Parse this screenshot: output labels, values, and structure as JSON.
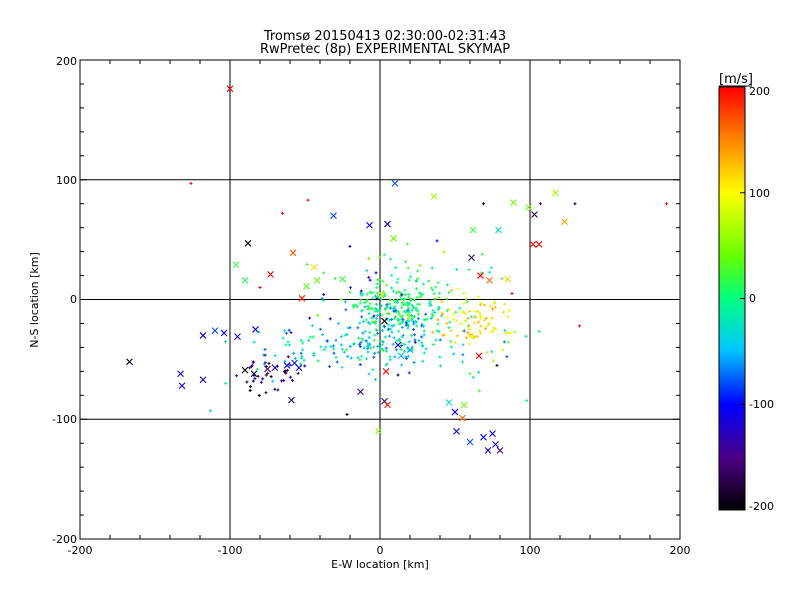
{
  "chart_data": {
    "type": "scatter",
    "title": "Tromsø 20150413 02:30:00-02:31:43",
    "subtitle": "RwPretec (8p) EXPERIMENTAL SKYMAP",
    "xlabel": "E-W location [km]",
    "ylabel": "N-S location [km]",
    "xlim": [
      -200,
      200
    ],
    "ylim": [
      -200,
      200
    ],
    "x_ticks": [
      "-200",
      "-100",
      "0",
      "100",
      "200"
    ],
    "y_ticks": [
      "-200",
      "-100",
      "0",
      "100",
      "200"
    ],
    "grid": true,
    "colorbar": {
      "label": "[m/s]",
      "range": [
        -200,
        200
      ],
      "ticks": [
        "-200",
        "-100",
        "0",
        "100",
        "200"
      ],
      "colormap": "rainbow",
      "colors": [
        "#000000",
        "#4b0082",
        "#0000ff",
        "#00c8ff",
        "#00ff80",
        "#66ff00",
        "#ffff00",
        "#ff8000",
        "#ff0000"
      ]
    },
    "markers": [
      {
        "x": -100,
        "y": 176,
        "v": 200,
        "m": "x"
      },
      {
        "x": -126,
        "y": 97,
        "v": 200,
        "m": "+"
      },
      {
        "x": -167,
        "y": -52,
        "v": -190,
        "m": "x"
      },
      {
        "x": -132,
        "y": -72,
        "v": -110,
        "m": "x"
      },
      {
        "x": -133,
        "y": -62,
        "v": -120,
        "m": "x"
      },
      {
        "x": -118,
        "y": -67,
        "v": -130,
        "m": "x"
      },
      {
        "x": -118,
        "y": -30,
        "v": -110,
        "m": "x"
      },
      {
        "x": -110,
        "y": -26,
        "v": -80,
        "m": "x"
      },
      {
        "x": -104,
        "y": -28,
        "v": -100,
        "m": "x"
      },
      {
        "x": -95,
        "y": -31,
        "v": -120,
        "m": "x"
      },
      {
        "x": -83,
        "y": -25,
        "v": -100,
        "m": "x"
      },
      {
        "x": -90,
        "y": -59,
        "v": -200,
        "m": "x"
      },
      {
        "x": -84,
        "y": -62,
        "v": -190,
        "m": "x"
      },
      {
        "x": -75,
        "y": -58,
        "v": -150,
        "m": "x"
      },
      {
        "x": -70,
        "y": -57,
        "v": -120,
        "m": "x"
      },
      {
        "x": -62,
        "y": -55,
        "v": -100,
        "m": "x"
      },
      {
        "x": -57,
        "y": -53,
        "v": -90,
        "m": "x"
      },
      {
        "x": -54,
        "y": -57,
        "v": -110,
        "m": "x"
      },
      {
        "x": -59,
        "y": -84,
        "v": -130,
        "m": "x"
      },
      {
        "x": -96,
        "y": 29,
        "v": 20,
        "m": "x"
      },
      {
        "x": -90,
        "y": 16,
        "v": 10,
        "m": "x"
      },
      {
        "x": -88,
        "y": 47,
        "v": -200,
        "m": "x"
      },
      {
        "x": -73,
        "y": 21,
        "v": 200,
        "m": "x"
      },
      {
        "x": -58,
        "y": 39,
        "v": 170,
        "m": "x"
      },
      {
        "x": -49,
        "y": 11,
        "v": 30,
        "m": "x"
      },
      {
        "x": -42,
        "y": 16,
        "v": 40,
        "m": "x"
      },
      {
        "x": -44,
        "y": 27,
        "v": 110,
        "m": "x"
      },
      {
        "x": -52,
        "y": 1,
        "v": 190,
        "m": "x"
      },
      {
        "x": -31,
        "y": 70,
        "v": -80,
        "m": "x"
      },
      {
        "x": -25,
        "y": 17,
        "v": 20,
        "m": "x"
      },
      {
        "x": -7,
        "y": 62,
        "v": -100,
        "m": "x"
      },
      {
        "x": 5,
        "y": 63,
        "v": -120,
        "m": "x"
      },
      {
        "x": 9,
        "y": 51,
        "v": 40,
        "m": "x"
      },
      {
        "x": 10,
        "y": 97,
        "v": -80,
        "m": "x"
      },
      {
        "x": 36,
        "y": 86,
        "v": 60,
        "m": "x"
      },
      {
        "x": 62,
        "y": 58,
        "v": 20,
        "m": "x"
      },
      {
        "x": 79,
        "y": 58,
        "v": -30,
        "m": "x"
      },
      {
        "x": 89,
        "y": 81,
        "v": 40,
        "m": "x"
      },
      {
        "x": 99,
        "y": 77,
        "v": 40,
        "m": "x"
      },
      {
        "x": 103,
        "y": 71,
        "v": -170,
        "m": "x"
      },
      {
        "x": 117,
        "y": 89,
        "v": 60,
        "m": "x"
      },
      {
        "x": 123,
        "y": 65,
        "v": 140,
        "m": "x"
      },
      {
        "x": 102,
        "y": 46,
        "v": 200,
        "m": "x"
      },
      {
        "x": 106,
        "y": 46,
        "v": 200,
        "m": "x"
      },
      {
        "x": 61,
        "y": 35,
        "v": -170,
        "m": "x"
      },
      {
        "x": 67,
        "y": 20,
        "v": 200,
        "m": "x"
      },
      {
        "x": 73,
        "y": 16,
        "v": 160,
        "m": "x"
      },
      {
        "x": 85,
        "y": 17,
        "v": 120,
        "m": "x"
      },
      {
        "x": 66,
        "y": -47,
        "v": 200,
        "m": "x"
      },
      {
        "x": 56,
        "y": -88,
        "v": 40,
        "m": "x"
      },
      {
        "x": 55,
        "y": -99,
        "v": 160,
        "m": "x"
      },
      {
        "x": 50,
        "y": -94,
        "v": -110,
        "m": "x"
      },
      {
        "x": 51,
        "y": -110,
        "v": -110,
        "m": "x"
      },
      {
        "x": 60,
        "y": -119,
        "v": -80,
        "m": "x"
      },
      {
        "x": 69,
        "y": -115,
        "v": -100,
        "m": "x"
      },
      {
        "x": 72,
        "y": -126,
        "v": -110,
        "m": "x"
      },
      {
        "x": 75,
        "y": -112,
        "v": -110,
        "m": "x"
      },
      {
        "x": 77,
        "y": -121,
        "v": -130,
        "m": "x"
      },
      {
        "x": 80,
        "y": -126,
        "v": -140,
        "m": "x"
      },
      {
        "x": 46,
        "y": -86,
        "v": -20,
        "m": "x"
      },
      {
        "x": 3,
        "y": -85,
        "v": -150,
        "m": "x"
      },
      {
        "x": 5,
        "y": -88,
        "v": 190,
        "m": "x"
      },
      {
        "x": -13,
        "y": -77,
        "v": -160,
        "m": "x"
      },
      {
        "x": -1,
        "y": -110,
        "v": 50,
        "m": "x"
      },
      {
        "x": 3,
        "y": -18,
        "v": -190,
        "m": "x"
      },
      {
        "x": 1,
        "y": 4,
        "v": 80,
        "m": "x"
      },
      {
        "x": 20,
        "y": -42,
        "v": -60,
        "m": "x"
      },
      {
        "x": 4,
        "y": -60,
        "v": 200,
        "m": "x"
      },
      {
        "x": 12,
        "y": -38,
        "v": -110,
        "m": "x"
      },
      {
        "x": 14,
        "y": -47,
        "v": -50,
        "m": "x"
      },
      {
        "x": 191,
        "y": 80,
        "v": 200,
        "m": "+"
      },
      {
        "x": 133,
        "y": -22,
        "v": 200,
        "m": "+"
      },
      {
        "x": -113,
        "y": -93,
        "v": -50,
        "m": "+"
      },
      {
        "x": 90,
        "y": -27,
        "v": 60,
        "m": "+"
      },
      {
        "x": 88,
        "y": 5,
        "v": 200,
        "m": "+"
      },
      {
        "x": 107,
        "y": 80,
        "v": -140,
        "m": "+"
      },
      {
        "x": 69,
        "y": 80,
        "v": -200,
        "m": "+"
      },
      {
        "x": -48,
        "y": 83,
        "v": 200,
        "m": "+"
      },
      {
        "x": -65,
        "y": 72,
        "v": 200,
        "m": "+"
      },
      {
        "x": -80,
        "y": 10,
        "v": 200,
        "m": "+"
      },
      {
        "x": -103,
        "y": -70,
        "v": 0,
        "m": "+"
      },
      {
        "x": -22,
        "y": -96,
        "v": -200,
        "m": "+"
      },
      {
        "x": 12,
        "y": -63,
        "v": -190,
        "m": "+"
      },
      {
        "x": 38,
        "y": 49,
        "v": -100,
        "m": "+"
      },
      {
        "x": 52,
        "y": 9,
        "v": 90,
        "m": "+"
      },
      {
        "x": 45,
        "y": -15,
        "v": 100,
        "m": "+"
      },
      {
        "x": 60,
        "y": -62,
        "v": 30,
        "m": "+"
      },
      {
        "x": 78,
        "y": -55,
        "v": -190,
        "m": "+"
      },
      {
        "x": 75,
        "y": -8,
        "v": 140,
        "m": "+"
      },
      {
        "x": 130,
        "y": 80,
        "v": -180,
        "m": "+"
      }
    ],
    "clusters": [
      {
        "cx": 15,
        "cy": -5,
        "sx": 18,
        "sy": 9,
        "n": 170,
        "vmin": -20,
        "vmax": 30
      },
      {
        "cx": 10,
        "cy": -32,
        "sx": 18,
        "sy": 12,
        "n": 140,
        "vmin": -80,
        "vmax": 20
      },
      {
        "cx": -45,
        "cy": -45,
        "sx": 22,
        "sy": 10,
        "n": 60,
        "vmin": -90,
        "vmax": 10
      },
      {
        "cx": 60,
        "cy": -18,
        "sx": 15,
        "sy": 10,
        "n": 80,
        "vmin": 70,
        "vmax": 140
      },
      {
        "cx": -75,
        "cy": -62,
        "sx": 12,
        "sy": 8,
        "n": 40,
        "vmin": -200,
        "vmax": -110
      },
      {
        "cx": -10,
        "cy": -15,
        "sx": 25,
        "sy": 20,
        "n": 60,
        "vmin": -130,
        "vmax": 30
      },
      {
        "cx": 30,
        "cy": 15,
        "sx": 25,
        "sy": 12,
        "n": 40,
        "vmin": -20,
        "vmax": 60
      },
      {
        "cx": 70,
        "cy": -40,
        "sx": 20,
        "sy": 25,
        "n": 20,
        "vmin": -80,
        "vmax": 100
      }
    ]
  }
}
